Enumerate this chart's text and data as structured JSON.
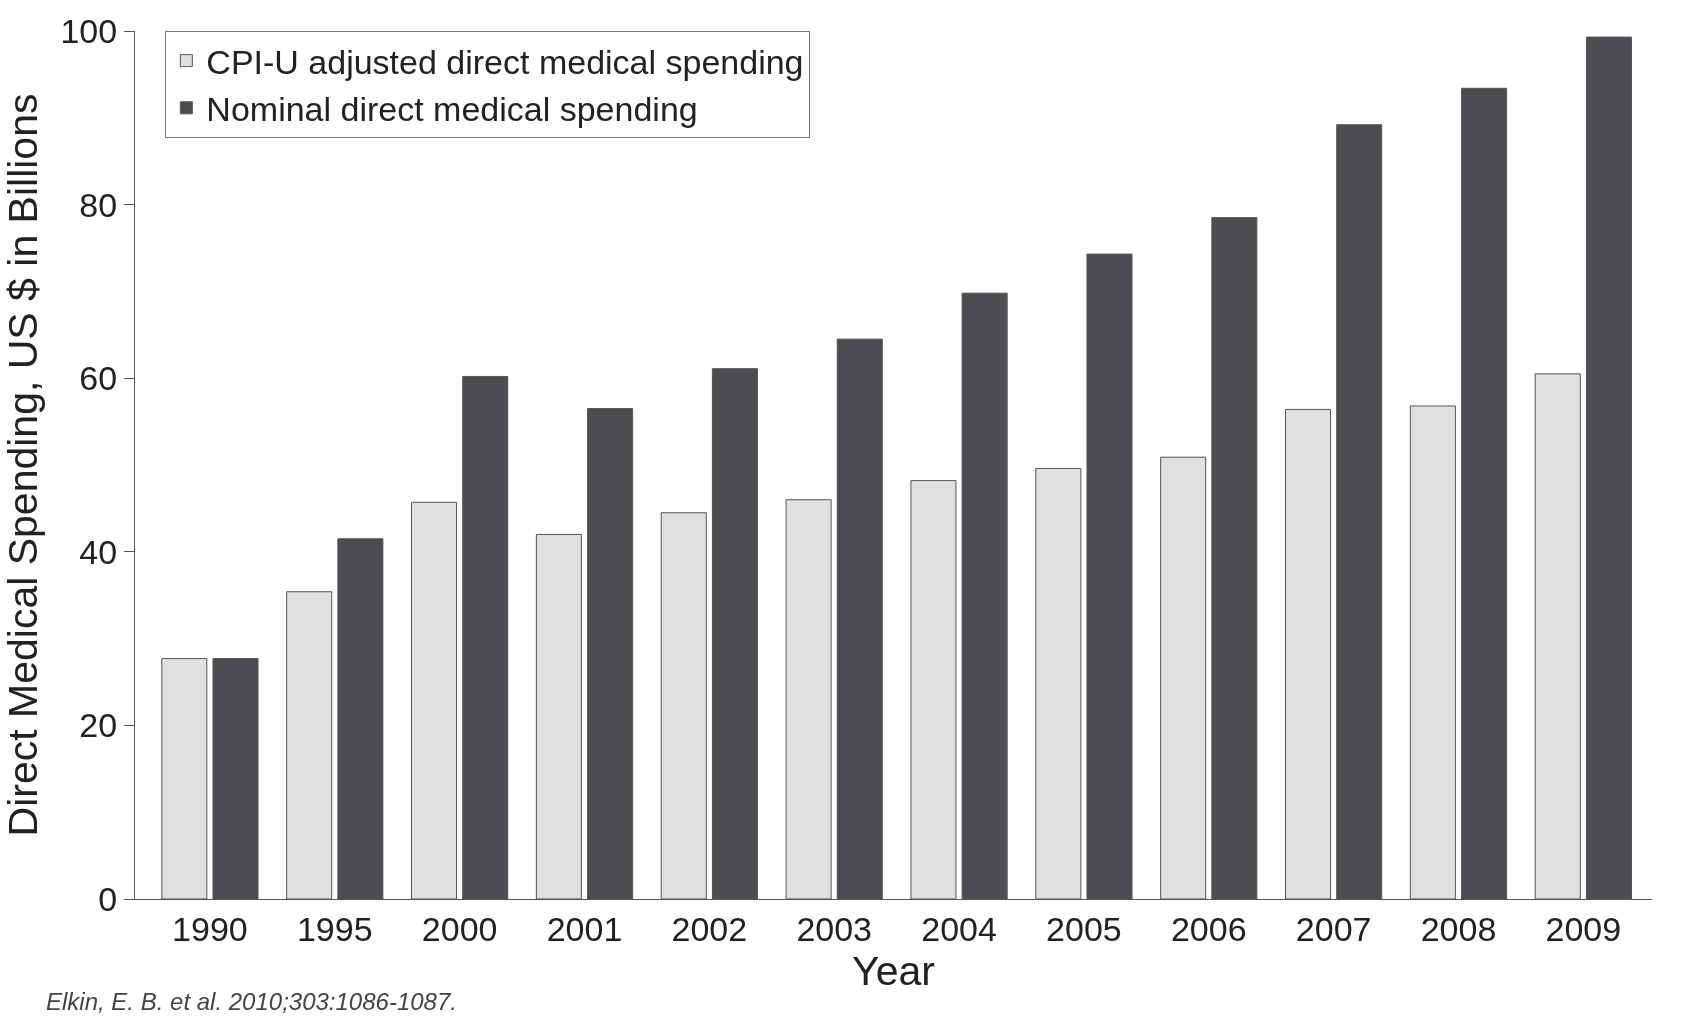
{
  "chart_data": {
    "type": "bar",
    "xlabel": "Year",
    "ylabel": "Direct Medical Spending, US $ in Billions",
    "categories": [
      "1990",
      "1995",
      "2000",
      "2001",
      "2002",
      "2003",
      "2004",
      "2005",
      "2006",
      "2007",
      "2008",
      "2009"
    ],
    "series": [
      {
        "name": "CPI-U adjusted direct medical spending",
        "color": "#e0e0e0",
        "values": [
          27.7,
          35.4,
          45.7,
          42.0,
          44.5,
          46.0,
          48.2,
          49.6,
          50.9,
          56.4,
          56.8,
          60.5
        ]
      },
      {
        "name": "Nominal direct medical spending",
        "color": "#4d4d51",
        "values": [
          27.7,
          41.5,
          60.2,
          56.5,
          61.1,
          64.5,
          69.8,
          74.3,
          78.5,
          89.2,
          93.4,
          99.3
        ]
      }
    ],
    "ylim": [
      0,
      100
    ],
    "yticks": [
      0,
      20,
      40,
      60,
      80,
      100
    ],
    "legend": "top left",
    "annotations": [
      "Elkin, E. B. et al. 2010;303:1086-1087."
    ]
  }
}
